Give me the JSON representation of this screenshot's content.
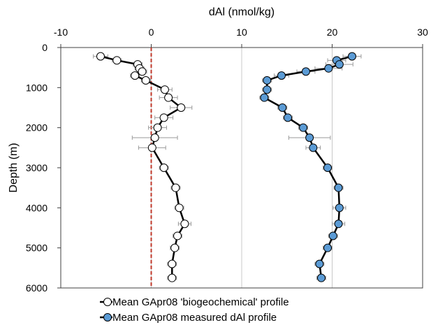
{
  "chart_data": {
    "type": "line",
    "title": "",
    "xlabel": "dAl (nmol/kg)",
    "ylabel": "Depth (m)",
    "xlim": [
      -10,
      30
    ],
    "ylim": [
      0,
      6000
    ],
    "y_inverted": true,
    "x_axis_position": "top",
    "xticks": [
      -10,
      0,
      10,
      20,
      30
    ],
    "yticks": [
      0,
      1000,
      2000,
      3000,
      4000,
      5000,
      6000
    ],
    "grid": "vertical",
    "reference_line": {
      "x": 0,
      "style": "dashed",
      "color": "#c0392b"
    },
    "legend_position": "bottom",
    "series": [
      {
        "name": "Mean GApr08 'biogeochemical' profile",
        "marker_fill": "#ffffff",
        "points": [
          {
            "x": -5.6,
            "y": 220,
            "err": 0.8
          },
          {
            "x": -3.8,
            "y": 320,
            "err": 0.5
          },
          {
            "x": -1.5,
            "y": 420,
            "err": 0.5
          },
          {
            "x": -1.3,
            "y": 520,
            "err": 0.5
          },
          {
            "x": -1.0,
            "y": 600,
            "err": 0.5
          },
          {
            "x": -1.8,
            "y": 700,
            "err": 0.5
          },
          {
            "x": -0.6,
            "y": 820,
            "err": 0.5
          },
          {
            "x": 1.5,
            "y": 1050,
            "err": 0.8
          },
          {
            "x": 1.9,
            "y": 1250,
            "err": 1.0
          },
          {
            "x": 3.3,
            "y": 1500,
            "err": 1.2
          },
          {
            "x": 1.4,
            "y": 1750,
            "err": 1.0
          },
          {
            "x": 0.7,
            "y": 2000,
            "err": 1.0
          },
          {
            "x": 0.4,
            "y": 2250,
            "err": 2.5
          },
          {
            "x": 0.1,
            "y": 2500,
            "err": 1.5
          },
          {
            "x": 1.4,
            "y": 3000,
            "err": 0.5
          },
          {
            "x": 2.7,
            "y": 3500,
            "err": 0.5
          },
          {
            "x": 3.1,
            "y": 4000,
            "err": 0.5
          },
          {
            "x": 3.7,
            "y": 4400,
            "err": 0.7
          },
          {
            "x": 2.9,
            "y": 4700,
            "err": 0.5
          },
          {
            "x": 2.6,
            "y": 5000,
            "err": 0.5
          },
          {
            "x": 2.3,
            "y": 5400,
            "err": 0.5
          },
          {
            "x": 2.3,
            "y": 5750,
            "err": 0.5
          }
        ]
      },
      {
        "name": "Mean GApr08 measured dAl profile",
        "marker_fill": "#5b9bd5",
        "points": [
          {
            "x": 22.2,
            "y": 220,
            "err": 1.0
          },
          {
            "x": 20.5,
            "y": 320,
            "err": 1.0
          },
          {
            "x": 20.8,
            "y": 420,
            "err": 1.5
          },
          {
            "x": 19.6,
            "y": 520,
            "err": 1.5
          },
          {
            "x": 17.1,
            "y": 600,
            "err": 1.0
          },
          {
            "x": 14.4,
            "y": 700,
            "err": 0.8
          },
          {
            "x": 12.8,
            "y": 820,
            "err": 0.5
          },
          {
            "x": 12.8,
            "y": 1050,
            "err": 0.5
          },
          {
            "x": 12.5,
            "y": 1250,
            "err": 0.5
          },
          {
            "x": 14.5,
            "y": 1500,
            "err": 0.5
          },
          {
            "x": 15.1,
            "y": 1750,
            "err": 0.5
          },
          {
            "x": 16.8,
            "y": 2000,
            "err": 0.5
          },
          {
            "x": 17.5,
            "y": 2250,
            "err": 2.3
          },
          {
            "x": 17.9,
            "y": 2500,
            "err": 0.8
          },
          {
            "x": 19.5,
            "y": 3000,
            "err": 0.5
          },
          {
            "x": 20.7,
            "y": 3500,
            "err": 0.5
          },
          {
            "x": 20.8,
            "y": 4000,
            "err": 0.7
          },
          {
            "x": 20.7,
            "y": 4400,
            "err": 0.7
          },
          {
            "x": 20.1,
            "y": 4700,
            "err": 0.5
          },
          {
            "x": 19.5,
            "y": 5000,
            "err": 0.5
          },
          {
            "x": 18.6,
            "y": 5400,
            "err": 0.5
          },
          {
            "x": 18.8,
            "y": 5750,
            "err": 0.5
          }
        ]
      }
    ]
  }
}
